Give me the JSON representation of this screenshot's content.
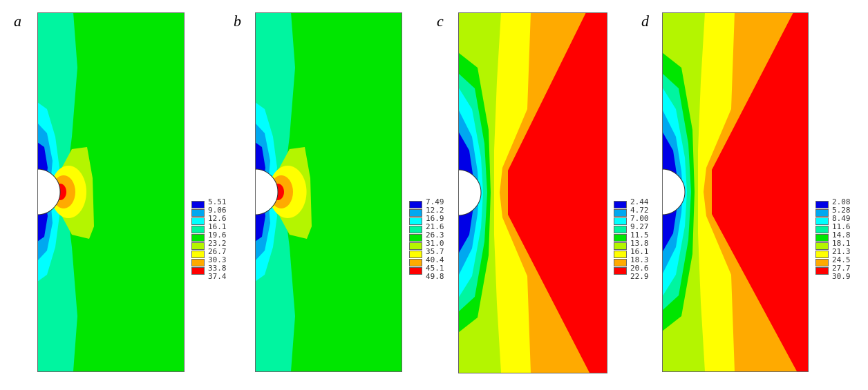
{
  "colors": [
    "#0000e6",
    "#00a8f0",
    "#00ffff",
    "#00f5a0",
    "#00e600",
    "#b4f500",
    "#ffff00",
    "#ffaa00",
    "#ff0000"
  ],
  "chart_data": {
    "type": "heatmap",
    "title": "",
    "panels": [
      {
        "label": "a",
        "legend": [
          "5.51",
          "9.06",
          "12.6",
          "16.1",
          "19.6",
          "23.2",
          "26.7",
          "30.3",
          "33.8",
          "37.4"
        ]
      },
      {
        "label": "b",
        "legend": [
          "7.49",
          "12.2",
          "16.9",
          "21.6",
          "26.3",
          "31.0",
          "35.7",
          "40.4",
          "45.1",
          "49.8"
        ]
      },
      {
        "label": "c",
        "legend": [
          "2.44",
          "4.72",
          "7.00",
          "9.27",
          "11.5",
          "13.8",
          "16.1",
          "18.3",
          "20.6",
          "22.9"
        ]
      },
      {
        "label": "d",
        "legend": [
          "2.08",
          "5.28",
          "8.49",
          "11.6",
          "14.8",
          "18.1",
          "21.3",
          "24.5",
          "27.7",
          "30.9"
        ]
      }
    ]
  }
}
